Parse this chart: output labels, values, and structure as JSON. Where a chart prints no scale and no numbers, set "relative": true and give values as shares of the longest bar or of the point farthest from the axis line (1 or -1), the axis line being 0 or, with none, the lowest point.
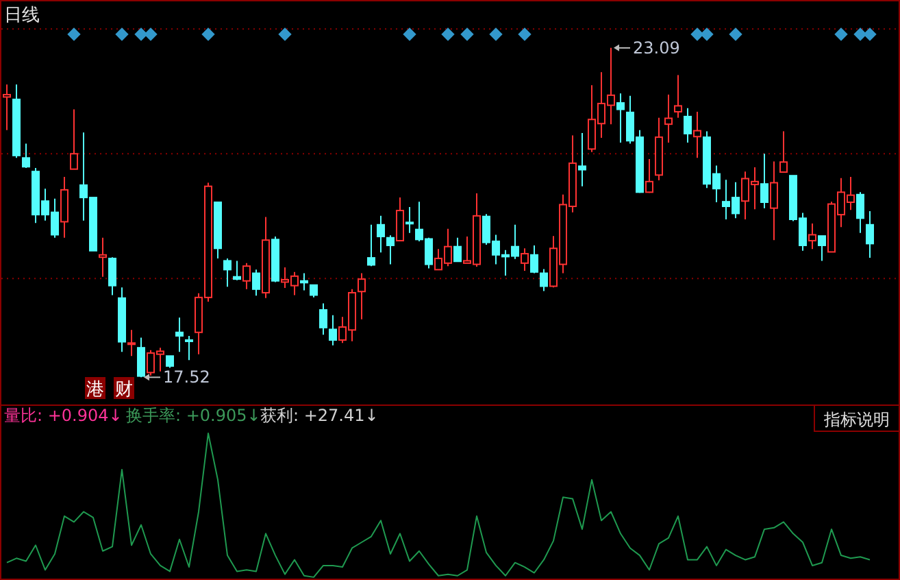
{
  "chart_data": [
    {
      "type": "candlestick",
      "title": "日线",
      "categories": [
        null,
        null,
        null,
        null,
        null,
        null,
        null,
        null,
        null,
        null,
        null,
        null,
        null,
        null,
        null,
        null,
        null,
        null,
        null,
        null,
        null,
        null,
        null,
        null,
        null,
        null,
        null,
        null,
        null,
        null,
        null,
        null,
        null,
        null,
        null,
        null,
        null,
        null,
        null,
        null,
        null,
        null,
        null,
        null,
        null,
        null,
        null,
        null,
        null,
        null,
        null,
        null,
        null,
        null,
        null,
        null,
        null,
        null,
        null,
        null,
        null,
        null,
        null,
        null,
        null,
        null,
        null,
        null,
        null,
        null,
        null,
        null,
        null,
        null,
        null,
        null,
        null,
        null,
        null,
        null,
        null,
        null,
        null,
        null,
        null,
        null,
        null,
        null,
        null,
        null,
        null
      ],
      "ohlc": [
        [
          22.26,
          22.47,
          21.7,
          22.3
        ],
        [
          22.22,
          22.47,
          21.23,
          21.27
        ],
        [
          21.23,
          21.47,
          21.06,
          21.08
        ],
        [
          21.0,
          21.06,
          20.13,
          20.27
        ],
        [
          20.5,
          20.71,
          20.17,
          20.27
        ],
        [
          20.31,
          20.54,
          19.88,
          19.93
        ],
        [
          20.15,
          20.91,
          19.88,
          20.69
        ],
        [
          21.04,
          22.05,
          21.04,
          21.3
        ],
        [
          20.77,
          21.66,
          20.17,
          20.56
        ],
        [
          20.56,
          20.56,
          19.66,
          19.66
        ],
        [
          19.55,
          19.88,
          19.22,
          19.59
        ],
        [
          19.53,
          19.55,
          18.91,
          19.07
        ],
        [
          18.86,
          19.04,
          17.95,
          18.12
        ],
        [
          18.09,
          18.32,
          17.88,
          18.1
        ],
        [
          18.02,
          18.19,
          17.52,
          17.54
        ],
        [
          17.6,
          17.98,
          17.55,
          17.93
        ],
        [
          17.91,
          18.02,
          17.62,
          17.96
        ],
        [
          17.88,
          17.88,
          17.68,
          17.71
        ],
        [
          18.28,
          18.53,
          17.95,
          18.22
        ],
        [
          18.15,
          18.22,
          17.81,
          18.14
        ],
        [
          18.28,
          18.94,
          17.91,
          18.87
        ],
        [
          18.87,
          20.81,
          18.8,
          20.75
        ],
        [
          20.48,
          20.48,
          19.53,
          19.7
        ],
        [
          19.49,
          19.53,
          19.05,
          19.34
        ],
        [
          19.22,
          19.49,
          19.16,
          19.18
        ],
        [
          19.15,
          19.45,
          19.01,
          19.4
        ],
        [
          19.28,
          19.34,
          18.9,
          19.01
        ],
        [
          18.95,
          20.23,
          18.86,
          19.84
        ],
        [
          19.85,
          19.9,
          19.13,
          19.15
        ],
        [
          19.13,
          19.38,
          19.03,
          19.17
        ],
        [
          19.07,
          19.3,
          18.91,
          19.23
        ],
        [
          19.15,
          19.28,
          18.99,
          19.12
        ],
        [
          19.08,
          19.08,
          18.87,
          18.91
        ],
        [
          18.66,
          18.77,
          18.24,
          18.36
        ],
        [
          18.33,
          18.57,
          18.06,
          18.15
        ],
        [
          18.15,
          18.54,
          18.1,
          18.37
        ],
        [
          18.32,
          19.01,
          18.13,
          18.95
        ],
        [
          18.97,
          19.28,
          18.5,
          19.18
        ],
        [
          19.54,
          20.1,
          19.4,
          19.42
        ],
        [
          20.1,
          20.25,
          19.63,
          19.9
        ],
        [
          19.88,
          19.92,
          19.43,
          19.75
        ],
        [
          19.83,
          20.56,
          19.82,
          20.34
        ],
        [
          20.14,
          20.4,
          19.96,
          20.13
        ],
        [
          20.02,
          20.49,
          19.82,
          19.85
        ],
        [
          19.86,
          19.88,
          19.36,
          19.43
        ],
        [
          19.34,
          19.69,
          19.34,
          19.53
        ],
        [
          19.45,
          20.03,
          19.4,
          19.73
        ],
        [
          19.73,
          19.88,
          19.47,
          19.48
        ],
        [
          19.45,
          19.9,
          19.45,
          19.49
        ],
        [
          19.43,
          20.63,
          19.39,
          20.25
        ],
        [
          20.24,
          20.28,
          19.76,
          19.8
        ],
        [
          19.82,
          19.93,
          19.43,
          19.59
        ],
        [
          19.59,
          19.67,
          19.24,
          19.56
        ],
        [
          19.73,
          20.1,
          19.52,
          19.57
        ],
        [
          19.45,
          19.7,
          19.32,
          19.61
        ],
        [
          19.59,
          19.75,
          19.28,
          19.3
        ],
        [
          19.28,
          19.35,
          18.98,
          19.06
        ],
        [
          19.06,
          19.91,
          19.04,
          19.7
        ],
        [
          19.43,
          20.61,
          19.28,
          20.44
        ],
        [
          20.41,
          21.61,
          20.31,
          21.14
        ],
        [
          21.09,
          21.65,
          20.75,
          21.03
        ],
        [
          21.38,
          22.46,
          21.33,
          21.88
        ],
        [
          21.81,
          22.68,
          21.57,
          22.15
        ],
        [
          22.12,
          23.09,
          21.8,
          22.29
        ],
        [
          22.16,
          22.32,
          21.49,
          22.05
        ],
        [
          22.0,
          22.28,
          21.47,
          21.52
        ],
        [
          21.58,
          21.7,
          20.64,
          20.65
        ],
        [
          20.65,
          21.21,
          20.64,
          20.83
        ],
        [
          20.94,
          21.91,
          20.85,
          21.58
        ],
        [
          21.8,
          22.3,
          21.49,
          21.9
        ],
        [
          22.01,
          22.63,
          21.91,
          22.11
        ],
        [
          21.93,
          22.07,
          21.49,
          21.64
        ],
        [
          21.59,
          22.01,
          21.23,
          21.69
        ],
        [
          21.58,
          21.68,
          20.72,
          20.79
        ],
        [
          20.96,
          21.1,
          20.48,
          20.71
        ],
        [
          20.49,
          20.86,
          20.19,
          20.41
        ],
        [
          20.56,
          20.82,
          20.21,
          20.29
        ],
        [
          20.5,
          21.0,
          20.19,
          20.88
        ],
        [
          20.78,
          21.07,
          20.36,
          20.83
        ],
        [
          20.79,
          21.3,
          20.38,
          20.48
        ],
        [
          20.38,
          21.17,
          19.84,
          20.81
        ],
        [
          20.99,
          21.68,
          20.98,
          21.16
        ],
        [
          20.93,
          20.93,
          20.16,
          20.19
        ],
        [
          20.21,
          20.3,
          19.66,
          19.75
        ],
        [
          19.83,
          20.12,
          19.69,
          19.93
        ],
        [
          19.91,
          19.91,
          19.49,
          19.75
        ],
        [
          19.64,
          20.49,
          19.64,
          20.45
        ],
        [
          20.27,
          20.89,
          20.06,
          20.65
        ],
        [
          20.48,
          20.91,
          20.35,
          20.6
        ],
        [
          20.61,
          20.65,
          19.96,
          20.21
        ],
        [
          20.1,
          20.33,
          19.54,
          19.78
        ]
      ],
      "series": [
        {
          "type": "scatter",
          "color": "#3399cc",
          "values": [
            null,
            null,
            null,
            null,
            null,
            null,
            null,
            23.32,
            null,
            null,
            null,
            null,
            23.32,
            null,
            23.32,
            23.32,
            null,
            null,
            null,
            null,
            null,
            23.32,
            null,
            null,
            null,
            null,
            null,
            null,
            null,
            23.32,
            null,
            null,
            null,
            null,
            null,
            null,
            null,
            null,
            null,
            null,
            null,
            null,
            23.32,
            null,
            null,
            null,
            23.32,
            null,
            23.32,
            null,
            null,
            23.32,
            null,
            null,
            23.32,
            null,
            null,
            null,
            null,
            null,
            null,
            null,
            null,
            null,
            null,
            null,
            null,
            null,
            null,
            null,
            null,
            null,
            23.32,
            23.32,
            null,
            null,
            23.32,
            null,
            null,
            null,
            null,
            null,
            null,
            null,
            null,
            null,
            null,
            23.32,
            null,
            23.32,
            23.32
          ]
        }
      ],
      "marker": "diamond",
      "ylim": [
        17.06,
        23.9
      ],
      "yticks": [
        {
          "value": 19.19,
          "label": null
        },
        {
          "value": 21.3,
          "label": null
        },
        {
          "value": 23.41,
          "label": null
        }
      ],
      "grid": "y",
      "annotations": [
        "23.09",
        "17.52",
        "港",
        "财"
      ]
    },
    {
      "type": "line",
      "relative": true,
      "categories": [
        null,
        null,
        null,
        null,
        null,
        null,
        null,
        null,
        null,
        null,
        null,
        null,
        null,
        null,
        null,
        null,
        null,
        null,
        null,
        null,
        null,
        null,
        null,
        null,
        null,
        null,
        null,
        null,
        null,
        null,
        null,
        null,
        null,
        null,
        null,
        null,
        null,
        null,
        null,
        null,
        null,
        null,
        null,
        null,
        null,
        null,
        null,
        null,
        null,
        null,
        null,
        null,
        null,
        null,
        null,
        null,
        null,
        null,
        null,
        null,
        null,
        null,
        null,
        null,
        null,
        null,
        null,
        null,
        null,
        null,
        null,
        null,
        null,
        null,
        null,
        null,
        null,
        null,
        null,
        null,
        null,
        null,
        null,
        null,
        null,
        null,
        null,
        null,
        null,
        null,
        null
      ],
      "series": [
        {
          "color": "#1f9a50",
          "values": [
            0.11,
            0.14,
            0.12,
            0.23,
            0.06,
            0.17,
            0.43,
            0.39,
            0.46,
            0.42,
            0.19,
            0.22,
            0.75,
            0.23,
            0.37,
            0.17,
            0.09,
            0.05,
            0.27,
            0.08,
            0.46,
            1,
            0.68,
            0.16,
            0.05,
            0.06,
            0.05,
            0.31,
            0.16,
            0.03,
            0.13,
            0.02,
            0.01,
            0.09,
            0.09,
            0.08,
            0.21,
            0.25,
            0.29,
            0.4,
            0.17,
            0.31,
            0.12,
            0.19,
            0.1,
            0.02,
            0.03,
            0.02,
            0.06,
            0.43,
            0.18,
            0.09,
            0.02,
            0.11,
            0.08,
            0.04,
            0.13,
            0.26,
            0.56,
            0.55,
            0.34,
            0.68,
            0.4,
            0.46,
            0.31,
            0.21,
            0.16,
            0.06,
            0.24,
            0.28,
            0.43,
            0.13,
            0.13,
            0.22,
            0.09,
            0.2,
            0.16,
            0.13,
            0.15,
            0.34,
            0.35,
            0.39,
            0.31,
            0.25,
            0.09,
            0.11,
            0.34,
            0.16,
            0.14,
            0.15,
            0.13
          ]
        }
      ],
      "annotations": [
        "量比: +0.904↓",
        "换手率: +0.905↓",
        "获利: +27.41↓",
        "指标说明"
      ]
    }
  ]
}
